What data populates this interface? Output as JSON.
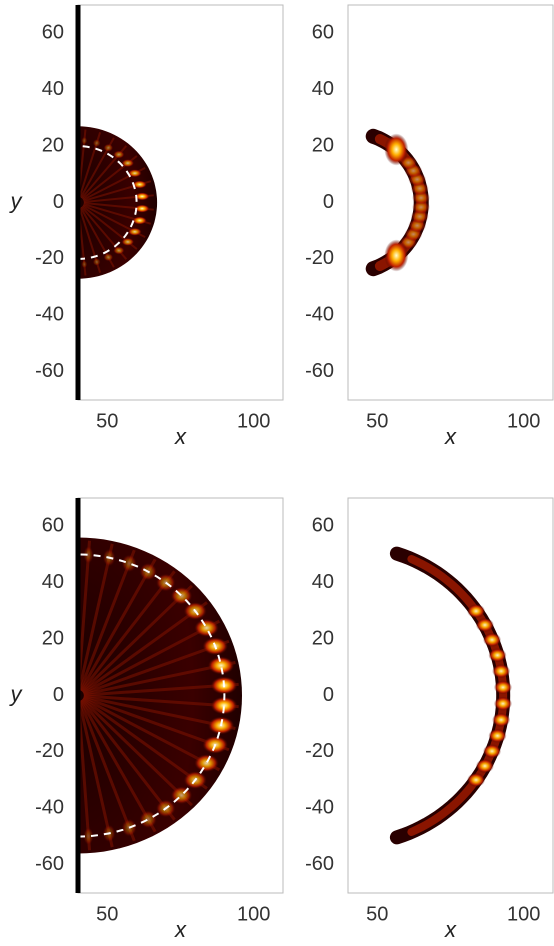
{
  "chart_data": [
    {
      "type": "heatmap",
      "xlabel": "x",
      "ylabel": "y",
      "xlim": [
        40,
        110
      ],
      "ylim": [
        -70,
        70
      ],
      "xticks": [
        50,
        100
      ],
      "yticks": [
        -60,
        -40,
        -20,
        0,
        20,
        40,
        60
      ]
    },
    {
      "type": "heatmap",
      "xlabel": "x",
      "xlim": [
        40,
        110
      ],
      "ylim": [
        -70,
        70
      ],
      "xticks": [
        50,
        100
      ],
      "yticks": [
        -60,
        -40,
        -20,
        0,
        20,
        40,
        60
      ]
    },
    {
      "type": "heatmap",
      "xlabel": "x",
      "ylabel": "y",
      "xlim": [
        40,
        110
      ],
      "ylim": [
        -70,
        70
      ],
      "xticks": [
        50,
        100
      ],
      "yticks": [
        -60,
        -40,
        -20,
        0,
        20,
        40,
        60
      ]
    },
    {
      "type": "heatmap",
      "xlabel": "x",
      "xlim": [
        40,
        110
      ],
      "ylim": [
        -70,
        70
      ],
      "xticks": [
        50,
        100
      ],
      "yticks": [
        -60,
        -40,
        -20,
        0,
        20,
        40,
        60
      ]
    }
  ]
}
